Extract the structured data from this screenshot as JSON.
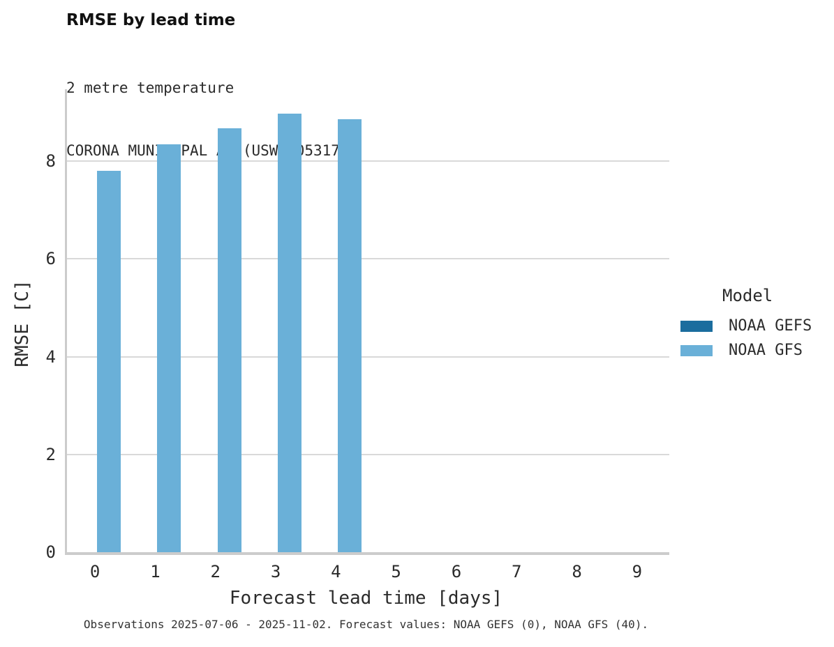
{
  "header": {
    "title": "RMSE by lead time",
    "subtitle_line1": "2 metre temperature",
    "subtitle_line2": "CORONA MUNICIPAL AP (USW00053175)"
  },
  "legend": {
    "title": "Model",
    "items": [
      {
        "label": "NOAA GEFS",
        "color": "#1b6d9e"
      },
      {
        "label": "NOAA GFS",
        "color": "#6ab0d8"
      }
    ]
  },
  "footer": {
    "note": "Observations 2025-07-06 - 2025-11-02. Forecast values: NOAA GEFS (0), NOAA GFS (40)."
  },
  "chart_data": {
    "type": "bar",
    "title": "RMSE by lead time",
    "subtitle": [
      "2 metre temperature",
      "CORONA MUNICIPAL AP (USW00053175)"
    ],
    "xlabel": "Forecast lead time [days]",
    "ylabel": "RMSE [C]",
    "categories": [
      "0",
      "1",
      "2",
      "3",
      "4",
      "5",
      "6",
      "7",
      "8",
      "9"
    ],
    "series": [
      {
        "name": "NOAA GEFS",
        "color": "#1b6d9e",
        "values": [
          null,
          null,
          null,
          null,
          null,
          null,
          null,
          null,
          null,
          null
        ]
      },
      {
        "name": "NOAA GFS",
        "color": "#6ab0d8",
        "values": [
          7.8,
          8.35,
          8.67,
          8.97,
          8.85,
          null,
          null,
          null,
          null,
          null
        ]
      }
    ],
    "yticks": [
      0,
      2,
      4,
      6,
      8
    ],
    "ylim": [
      0,
      9.47
    ],
    "grid": true,
    "gridline_color": "#d9d9d9",
    "legend_position": "right",
    "annotation": "Observations 2025-07-06 - 2025-11-02. Forecast values: NOAA GEFS (0), NOAA GFS (40)."
  }
}
